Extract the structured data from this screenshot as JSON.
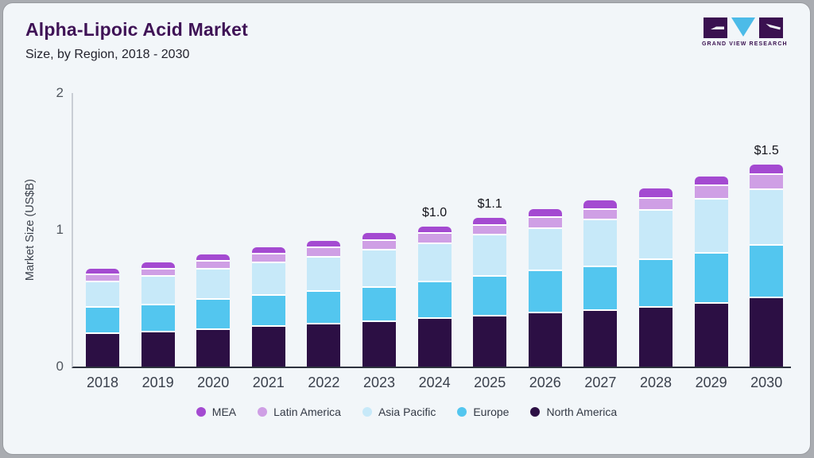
{
  "header": {
    "title": "Alpha-Lipoic Acid Market",
    "subtitle": "Size, by Region, 2018 - 2030",
    "logo_text": "GRAND VIEW RESEARCH"
  },
  "chart_data": {
    "type": "bar",
    "stacked": true,
    "title": "Alpha-Lipoic Acid Market Size, by Region, 2018 - 2030",
    "ylabel": "Market Size (US$B)",
    "ylim": [
      0,
      2
    ],
    "yticks": [
      0,
      1,
      2
    ],
    "grid": false,
    "legend_position": "bottom",
    "categories": [
      "2018",
      "2019",
      "2020",
      "2021",
      "2022",
      "2023",
      "2024",
      "2025",
      "2026",
      "2027",
      "2028",
      "2029",
      "2030"
    ],
    "series": [
      {
        "name": "MEA",
        "color": "#a44ad1",
        "values": [
          0.035,
          0.04,
          0.04,
          0.04,
          0.04,
          0.045,
          0.045,
          0.05,
          0.05,
          0.055,
          0.06,
          0.06,
          0.06
        ]
      },
      {
        "name": "Latin America",
        "color": "#cf9fe5",
        "values": [
          0.05,
          0.05,
          0.06,
          0.06,
          0.07,
          0.07,
          0.07,
          0.07,
          0.08,
          0.08,
          0.09,
          0.1,
          0.11
        ]
      },
      {
        "name": "Asia Pacific",
        "color": "#c7e9f9",
        "values": [
          0.19,
          0.21,
          0.22,
          0.24,
          0.25,
          0.27,
          0.28,
          0.3,
          0.31,
          0.34,
          0.36,
          0.39,
          0.41
        ]
      },
      {
        "name": "Europe",
        "color": "#53c6ef",
        "values": [
          0.19,
          0.2,
          0.22,
          0.23,
          0.24,
          0.25,
          0.27,
          0.29,
          0.31,
          0.32,
          0.35,
          0.37,
          0.385
        ]
      },
      {
        "name": "North America",
        "color": "#2c0f44",
        "values": [
          0.25,
          0.26,
          0.28,
          0.3,
          0.32,
          0.34,
          0.36,
          0.38,
          0.4,
          0.42,
          0.44,
          0.47,
          0.51
        ]
      }
    ],
    "totals": [
      0.715,
      0.76,
      0.82,
      0.87,
      0.92,
      0.975,
      1.025,
      1.09,
      1.15,
      1.215,
      1.3,
      1.39,
      1.475
    ],
    "annotations": [
      "",
      "",
      "",
      "",
      "",
      "",
      "$1.0",
      "$1.1",
      "",
      "",
      "",
      "",
      "$1.5"
    ]
  },
  "colors": {
    "card_background": "#f2f6f9",
    "title": "#3f1356",
    "x_axis": "#2d323e",
    "y_axis": "#c9ced5",
    "logo_purple": "#3a1150",
    "logo_cyan": "#4cbbe8"
  }
}
